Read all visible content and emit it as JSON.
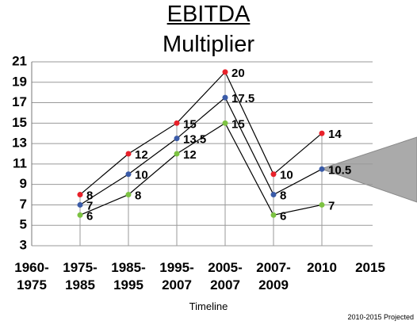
{
  "chart_data": {
    "type": "line",
    "title": "EBITDA",
    "subtitle": "Multiplier",
    "x_label": "Timeline",
    "annotation": "2010-2015 Projected",
    "categories": [
      "1960-1975",
      "1975-1985",
      "1985-1995",
      "1995-2007",
      "2005-2007",
      "2007-2009",
      "2010",
      "2015"
    ],
    "series": [
      {
        "color": "#e8212a",
        "values": [
          null,
          8,
          12,
          15,
          20,
          10,
          14,
          null
        ]
      },
      {
        "color": "#3a5ba8",
        "values": [
          null,
          7,
          10,
          13.5,
          17.5,
          8,
          10.5,
          null
        ]
      },
      {
        "color": "#7cc242",
        "values": [
          null,
          6,
          8,
          12,
          15,
          6,
          7,
          null
        ]
      }
    ],
    "ylim": [
      3,
      21
    ],
    "yticks": [
      3,
      5,
      7,
      9,
      11,
      13,
      15,
      17,
      19,
      21
    ],
    "grid": true
  }
}
